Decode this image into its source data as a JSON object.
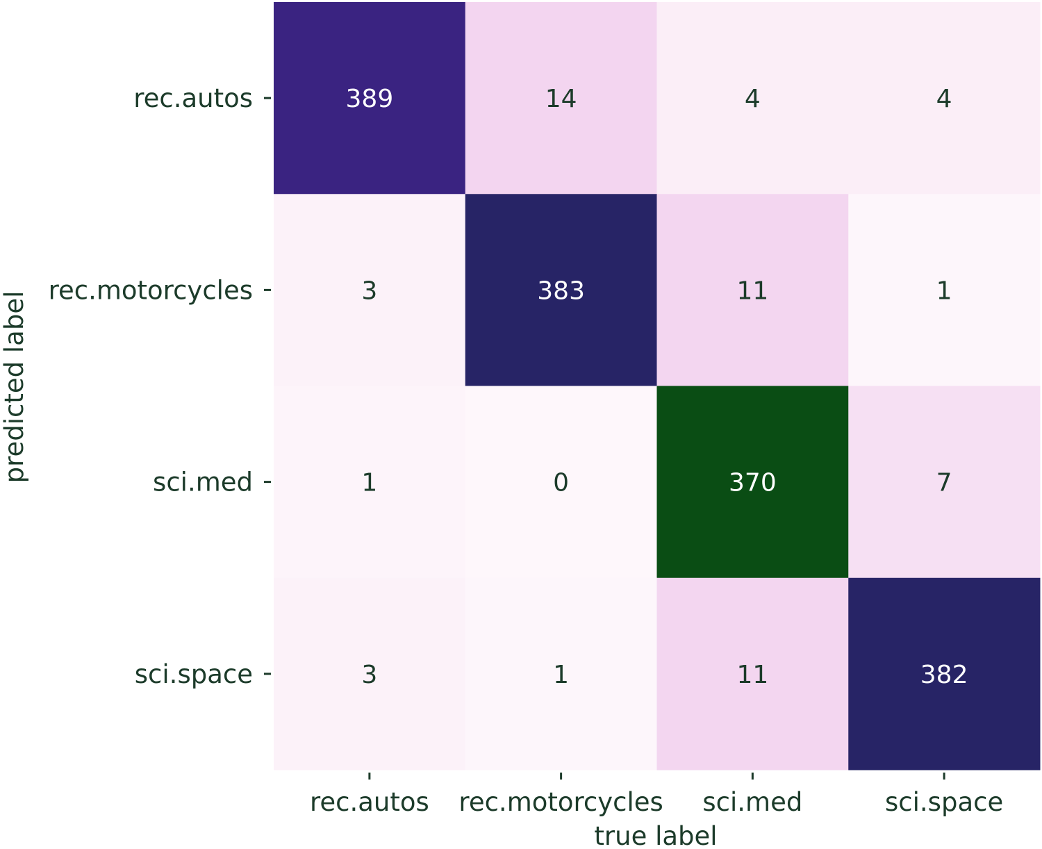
{
  "chart_data": {
    "type": "heatmap",
    "title": "",
    "xlabel": "true label",
    "ylabel": "predicted label",
    "x_categories": [
      "rec.autos",
      "rec.motorcycles",
      "sci.med",
      "sci.space"
    ],
    "y_categories": [
      "rec.autos",
      "rec.motorcycles",
      "sci.med",
      "sci.space"
    ],
    "values": [
      [
        389,
        14,
        4,
        4
      ],
      [
        3,
        383,
        11,
        1
      ],
      [
        1,
        0,
        370,
        7
      ],
      [
        3,
        1,
        11,
        382
      ]
    ],
    "cell_colors": [
      [
        "#3a2381",
        "#f3d5f0",
        "#fbeef7",
        "#fbeef7"
      ],
      [
        "#fcf2f9",
        "#272466",
        "#f3d6f0",
        "#fdf6fb"
      ],
      [
        "#fdf4fa",
        "#fef7fb",
        "#0a4d14",
        "#f6e0f3"
      ],
      [
        "#fcf2f9",
        "#fdf6fb",
        "#f3d6f0",
        "#272466"
      ]
    ],
    "light_text_color": "#ffffff",
    "dark_text_color": "#1c3b2a",
    "grid": false,
    "legend": "none"
  }
}
